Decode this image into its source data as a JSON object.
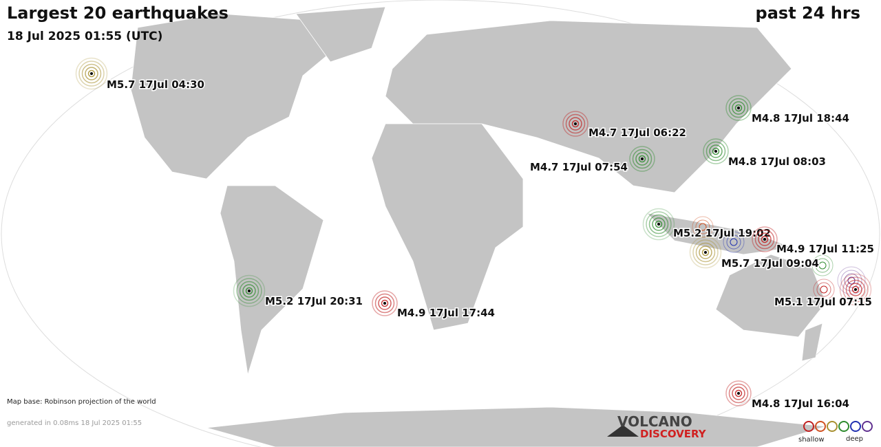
{
  "header": {
    "title": "Largest 20 earthquakes",
    "timestamp": "18 Jul 2025 01:55 (UTC)",
    "period": "past 24 hrs"
  },
  "quakes": [
    {
      "label": "M5.7 17Jul 04:30",
      "color": "#a89030"
    },
    {
      "label": "M4.8 17Jul 18:44",
      "color": "#2e8b2e"
    },
    {
      "label": "M4.7 17Jul 06:22",
      "color": "#c02020"
    },
    {
      "label": "M4.8 17Jul 08:03",
      "color": "#2e8b2e"
    },
    {
      "label": "M4.7 17Jul 07:54",
      "color": "#2e8b2e"
    },
    {
      "label": "M5.2 17Jul 19:02",
      "color": "#2e8b2e"
    },
    {
      "label": "M4.9 17Jul 11:25",
      "color": "#c02020"
    },
    {
      "label": "M5.7 17Jul 09:04",
      "color": "#a89030"
    },
    {
      "label": "M5.1 17Jul 07:15",
      "color": "#c02020"
    },
    {
      "label": "M5.2 17Jul 20:31",
      "color": "#2e8b2e"
    },
    {
      "label": "M4.9 17Jul 17:44",
      "color": "#c02020"
    },
    {
      "label": "M4.8 17Jul 16:04",
      "color": "#c02020"
    }
  ],
  "footer": {
    "map_base": "Map base: Robinson projection of the world",
    "generated": "generated in 0.08ms 18 Jul 2025 01:55",
    "logo_top": "VOLCANO",
    "logo_bottom": "DISCOVERY",
    "legend_shallow": "shallow",
    "legend_deep": "deep"
  }
}
